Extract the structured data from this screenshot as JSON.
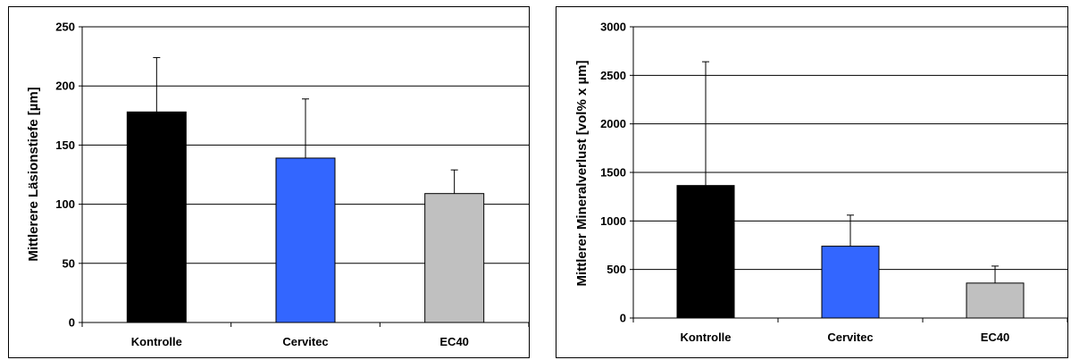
{
  "chart_data": [
    {
      "type": "bar",
      "categories": [
        "Kontrolle",
        "Cervitec",
        "EC40"
      ],
      "values": [
        178,
        139,
        109
      ],
      "error_plus": [
        46,
        50,
        20
      ],
      "colors": [
        "#000000",
        "#3366FF",
        "#C0C0C0"
      ],
      "ylabel": "Mittlerere Läsionstiefe [µm]",
      "xlabel": "",
      "ylim": [
        0,
        250
      ],
      "yticks": [
        0,
        50,
        100,
        150,
        200,
        250
      ],
      "grid": true,
      "legend": "none"
    },
    {
      "type": "bar",
      "categories": [
        "Kontrolle",
        "Cervitec",
        "EC40"
      ],
      "values": [
        1365,
        740,
        360
      ],
      "error_plus": [
        1275,
        320,
        175
      ],
      "colors": [
        "#000000",
        "#3366FF",
        "#C0C0C0"
      ],
      "ylabel": "Mittlerer Mineralverlust [vol% x µm]",
      "xlabel": "",
      "ylim": [
        0,
        3000
      ],
      "yticks": [
        0,
        500,
        1000,
        1500,
        2000,
        2500,
        3000
      ],
      "grid": true,
      "legend": "none"
    }
  ]
}
